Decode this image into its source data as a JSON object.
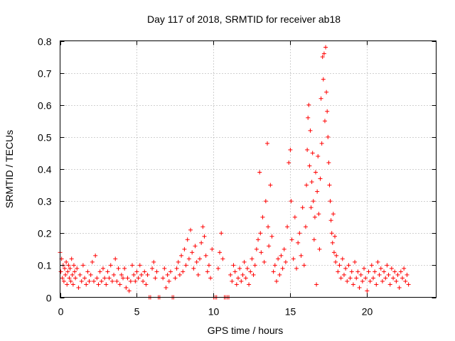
{
  "chart_data": {
    "type": "scatter",
    "title": "Day 117 of 2018, SRMTID for receiver ab18",
    "xlabel": "GPS time / hours",
    "ylabel": "SRMTID / TECUs",
    "xlim": [
      0,
      24.5
    ],
    "ylim": [
      0,
      0.8
    ],
    "x_ticks": [
      0,
      5,
      10,
      15,
      20
    ],
    "x_tick_labels": [
      "0",
      "5",
      "10",
      "15",
      "20"
    ],
    "y_ticks": [
      0,
      0.1,
      0.2,
      0.3,
      0.4,
      0.5,
      0.6,
      0.7,
      0.8
    ],
    "y_tick_labels": [
      "0",
      "0.1",
      "0.2",
      "0.3",
      "0.4",
      "0.5",
      "0.6",
      "0.7",
      "0.8"
    ],
    "grid": true,
    "marker": "+",
    "series": [
      {
        "name": "SRMTID",
        "color": "#ff0000",
        "points": [
          [
            0.0,
            0.14
          ],
          [
            0.05,
            0.08
          ],
          [
            0.1,
            0.12
          ],
          [
            0.15,
            0.06
          ],
          [
            0.2,
            0.1
          ],
          [
            0.25,
            0.05
          ],
          [
            0.3,
            0.09
          ],
          [
            0.35,
            0.07
          ],
          [
            0.4,
            0.11
          ],
          [
            0.45,
            0.04
          ],
          [
            0.5,
            0.08
          ],
          [
            0.55,
            0.1
          ],
          [
            0.6,
            0.06
          ],
          [
            0.65,
            0.09
          ],
          [
            0.7,
            0.05
          ],
          [
            0.75,
            0.12
          ],
          [
            0.8,
            0.07
          ],
          [
            0.85,
            0.04
          ],
          [
            0.9,
            0.1
          ],
          [
            0.95,
            0.08
          ],
          [
            1.0,
            0.06
          ],
          [
            1.1,
            0.09
          ],
          [
            1.2,
            0.03
          ],
          [
            1.3,
            0.07
          ],
          [
            1.4,
            0.05
          ],
          [
            1.5,
            0.1
          ],
          [
            1.6,
            0.06
          ],
          [
            1.7,
            0.04
          ],
          [
            1.8,
            0.08
          ],
          [
            1.9,
            0.05
          ],
          [
            2.0,
            0.07
          ],
          [
            2.1,
            0.11
          ],
          [
            2.2,
            0.05
          ],
          [
            2.3,
            0.13
          ],
          [
            2.4,
            0.06
          ],
          [
            2.5,
            0.04
          ],
          [
            2.6,
            0.08
          ],
          [
            2.7,
            0.05
          ],
          [
            2.8,
            0.09
          ],
          [
            2.9,
            0.06
          ],
          [
            3.0,
            0.04
          ],
          [
            3.1,
            0.08
          ],
          [
            3.2,
            0.06
          ],
          [
            3.3,
            0.1
          ],
          [
            3.4,
            0.05
          ],
          [
            3.5,
            0.07
          ],
          [
            3.6,
            0.12
          ],
          [
            3.7,
            0.05
          ],
          [
            3.8,
            0.09
          ],
          [
            3.9,
            0.04
          ],
          [
            4.0,
            0.07
          ],
          [
            4.1,
            0.06
          ],
          [
            4.2,
            0.09
          ],
          [
            4.3,
            0.03
          ],
          [
            4.4,
            0.06
          ],
          [
            4.5,
            0.02
          ],
          [
            4.6,
            0.05
          ],
          [
            4.7,
            0.1
          ],
          [
            4.8,
            0.07
          ],
          [
            4.9,
            0.05
          ],
          [
            5.0,
            0.08
          ],
          [
            5.1,
            0.06
          ],
          [
            5.2,
            0.1
          ],
          [
            5.3,
            0.07
          ],
          [
            5.4,
            0.05
          ],
          [
            5.5,
            0.08
          ],
          [
            5.6,
            0.04
          ],
          [
            5.7,
            0.07
          ],
          [
            5.8,
            0.0
          ],
          [
            5.9,
            0.0
          ],
          [
            6.0,
            0.09
          ],
          [
            6.1,
            0.11
          ],
          [
            6.2,
            0.06
          ],
          [
            6.3,
            0.08
          ],
          [
            6.4,
            0.0
          ],
          [
            6.5,
            0.0
          ],
          [
            6.7,
            0.06
          ],
          [
            6.8,
            0.09
          ],
          [
            6.9,
            0.03
          ],
          [
            7.0,
            0.07
          ],
          [
            7.1,
            0.05
          ],
          [
            7.2,
            0.08
          ],
          [
            7.3,
            0.0
          ],
          [
            7.4,
            0.0
          ],
          [
            7.5,
            0.06
          ],
          [
            7.6,
            0.09
          ],
          [
            7.7,
            0.11
          ],
          [
            7.8,
            0.07
          ],
          [
            7.9,
            0.13
          ],
          [
            8.0,
            0.08
          ],
          [
            8.1,
            0.15
          ],
          [
            8.2,
            0.1
          ],
          [
            8.3,
            0.18
          ],
          [
            8.4,
            0.12
          ],
          [
            8.5,
            0.21
          ],
          [
            8.6,
            0.14
          ],
          [
            8.7,
            0.09
          ],
          [
            8.8,
            0.16
          ],
          [
            8.9,
            0.11
          ],
          [
            9.0,
            0.07
          ],
          [
            9.1,
            0.12
          ],
          [
            9.2,
            0.17
          ],
          [
            9.3,
            0.22
          ],
          [
            9.4,
            0.19
          ],
          [
            9.5,
            0.13
          ],
          [
            9.6,
            0.08
          ],
          [
            9.7,
            0.1
          ],
          [
            9.8,
            0.06
          ],
          [
            9.9,
            0.15
          ],
          [
            10.0,
            0.0
          ],
          [
            10.1,
            0.0
          ],
          [
            10.2,
            0.0
          ],
          [
            10.3,
            0.09
          ],
          [
            10.4,
            0.14
          ],
          [
            10.5,
            0.2
          ],
          [
            10.6,
            0.12
          ],
          [
            10.7,
            0.0
          ],
          [
            10.8,
            0.0
          ],
          [
            10.9,
            0.0
          ],
          [
            11.0,
            0.0
          ],
          [
            11.1,
            0.07
          ],
          [
            11.2,
            0.05
          ],
          [
            11.3,
            0.1
          ],
          [
            11.4,
            0.08
          ],
          [
            11.5,
            0.04
          ],
          [
            11.6,
            0.06
          ],
          [
            11.7,
            0.09
          ],
          [
            11.8,
            0.05
          ],
          [
            11.9,
            0.07
          ],
          [
            12.0,
            0.11
          ],
          [
            12.1,
            0.06
          ],
          [
            12.2,
            0.09
          ],
          [
            12.3,
            0.04
          ],
          [
            12.4,
            0.08
          ],
          [
            12.5,
            0.12
          ],
          [
            12.6,
            0.07
          ],
          [
            12.7,
            0.1
          ],
          [
            12.8,
            0.15
          ],
          [
            12.9,
            0.18
          ],
          [
            13.0,
            0.39
          ],
          [
            13.05,
            0.2
          ],
          [
            13.1,
            0.14
          ],
          [
            13.2,
            0.25
          ],
          [
            13.3,
            0.11
          ],
          [
            13.4,
            0.3
          ],
          [
            13.5,
            0.48
          ],
          [
            13.55,
            0.22
          ],
          [
            13.6,
            0.16
          ],
          [
            13.7,
            0.35
          ],
          [
            13.8,
            0.19
          ],
          [
            13.9,
            0.08
          ],
          [
            14.0,
            0.1
          ],
          [
            14.1,
            0.05
          ],
          [
            14.2,
            0.12
          ],
          [
            14.3,
            0.07
          ],
          [
            14.4,
            0.13
          ],
          [
            14.5,
            0.09
          ],
          [
            14.6,
            0.15
          ],
          [
            14.7,
            0.11
          ],
          [
            14.8,
            0.22
          ],
          [
            14.9,
            0.42
          ],
          [
            15.0,
            0.46
          ],
          [
            15.05,
            0.3
          ],
          [
            15.1,
            0.18
          ],
          [
            15.2,
            0.12
          ],
          [
            15.3,
            0.25
          ],
          [
            15.4,
            0.09
          ],
          [
            15.5,
            0.17
          ],
          [
            15.6,
            0.2
          ],
          [
            15.7,
            0.13
          ],
          [
            15.8,
            0.28
          ],
          [
            15.9,
            0.1
          ],
          [
            16.0,
            0.22
          ],
          [
            16.05,
            0.35
          ],
          [
            16.1,
            0.46
          ],
          [
            16.15,
            0.56
          ],
          [
            16.2,
            0.6
          ],
          [
            16.25,
            0.41
          ],
          [
            16.3,
            0.52
          ],
          [
            16.35,
            0.28
          ],
          [
            16.4,
            0.36
          ],
          [
            16.45,
            0.45
          ],
          [
            16.5,
            0.3
          ],
          [
            16.55,
            0.18
          ],
          [
            16.6,
            0.25
          ],
          [
            16.65,
            0.39
          ],
          [
            16.7,
            0.04
          ],
          [
            16.75,
            0.33
          ],
          [
            16.8,
            0.44
          ],
          [
            16.85,
            0.26
          ],
          [
            16.9,
            0.15
          ],
          [
            16.95,
            0.37
          ],
          [
            17.0,
            0.62
          ],
          [
            17.05,
            0.48
          ],
          [
            17.1,
            0.75
          ],
          [
            17.15,
            0.68
          ],
          [
            17.2,
            0.76
          ],
          [
            17.25,
            0.55
          ],
          [
            17.3,
            0.78
          ],
          [
            17.35,
            0.64
          ],
          [
            17.4,
            0.58
          ],
          [
            17.45,
            0.5
          ],
          [
            17.5,
            0.42
          ],
          [
            17.55,
            0.35
          ],
          [
            17.6,
            0.3
          ],
          [
            17.65,
            0.24
          ],
          [
            17.7,
            0.2
          ],
          [
            17.75,
            0.17
          ],
          [
            17.8,
            0.26
          ],
          [
            17.85,
            0.14
          ],
          [
            17.9,
            0.19
          ],
          [
            17.95,
            0.11
          ],
          [
            18.0,
            0.13
          ],
          [
            18.1,
            0.08
          ],
          [
            18.2,
            0.1
          ],
          [
            18.3,
            0.06
          ],
          [
            18.4,
            0.12
          ],
          [
            18.5,
            0.07
          ],
          [
            18.6,
            0.09
          ],
          [
            18.7,
            0.05
          ],
          [
            18.8,
            0.1
          ],
          [
            18.9,
            0.06
          ],
          [
            19.0,
            0.08
          ],
          [
            19.1,
            0.04
          ],
          [
            19.2,
            0.11
          ],
          [
            19.3,
            0.06
          ],
          [
            19.4,
            0.08
          ],
          [
            19.5,
            0.03
          ],
          [
            19.6,
            0.07
          ],
          [
            19.7,
            0.05
          ],
          [
            19.8,
            0.09
          ],
          [
            19.9,
            0.06
          ],
          [
            20.0,
            0.02
          ],
          [
            20.1,
            0.08
          ],
          [
            20.2,
            0.05
          ],
          [
            20.3,
            0.1
          ],
          [
            20.4,
            0.06
          ],
          [
            20.5,
            0.08
          ],
          [
            20.6,
            0.04
          ],
          [
            20.7,
            0.11
          ],
          [
            20.8,
            0.07
          ],
          [
            20.9,
            0.09
          ],
          [
            21.0,
            0.05
          ],
          [
            21.1,
            0.08
          ],
          [
            21.2,
            0.06
          ],
          [
            21.3,
            0.1
          ],
          [
            21.4,
            0.07
          ],
          [
            21.5,
            0.04
          ],
          [
            21.6,
            0.09
          ],
          [
            21.7,
            0.06
          ],
          [
            21.8,
            0.08
          ],
          [
            21.9,
            0.05
          ],
          [
            22.0,
            0.07
          ],
          [
            22.1,
            0.03
          ],
          [
            22.2,
            0.08
          ],
          [
            22.3,
            0.06
          ],
          [
            22.4,
            0.09
          ],
          [
            22.5,
            0.05
          ],
          [
            22.6,
            0.07
          ],
          [
            22.7,
            0.04
          ]
        ]
      }
    ]
  }
}
